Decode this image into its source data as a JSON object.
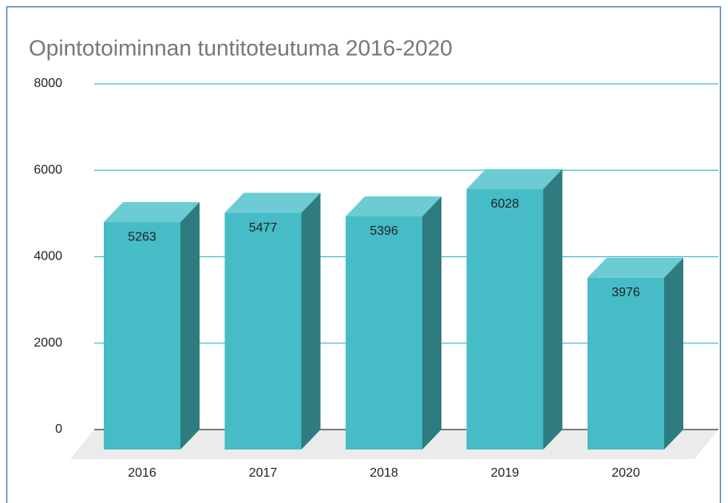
{
  "chart_data": {
    "type": "bar3d",
    "title": "Opintotoiminnan tuntitoteutuma 2016-2020",
    "categories": [
      "2016",
      "2017",
      "2018",
      "2019",
      "2020"
    ],
    "values": [
      5263,
      5477,
      5396,
      6028,
      3976
    ],
    "color": "#45bcc6",
    "ylim": [
      0,
      8000
    ],
    "yticks": [
      0,
      2000,
      4000,
      6000,
      8000
    ],
    "grid": true
  }
}
